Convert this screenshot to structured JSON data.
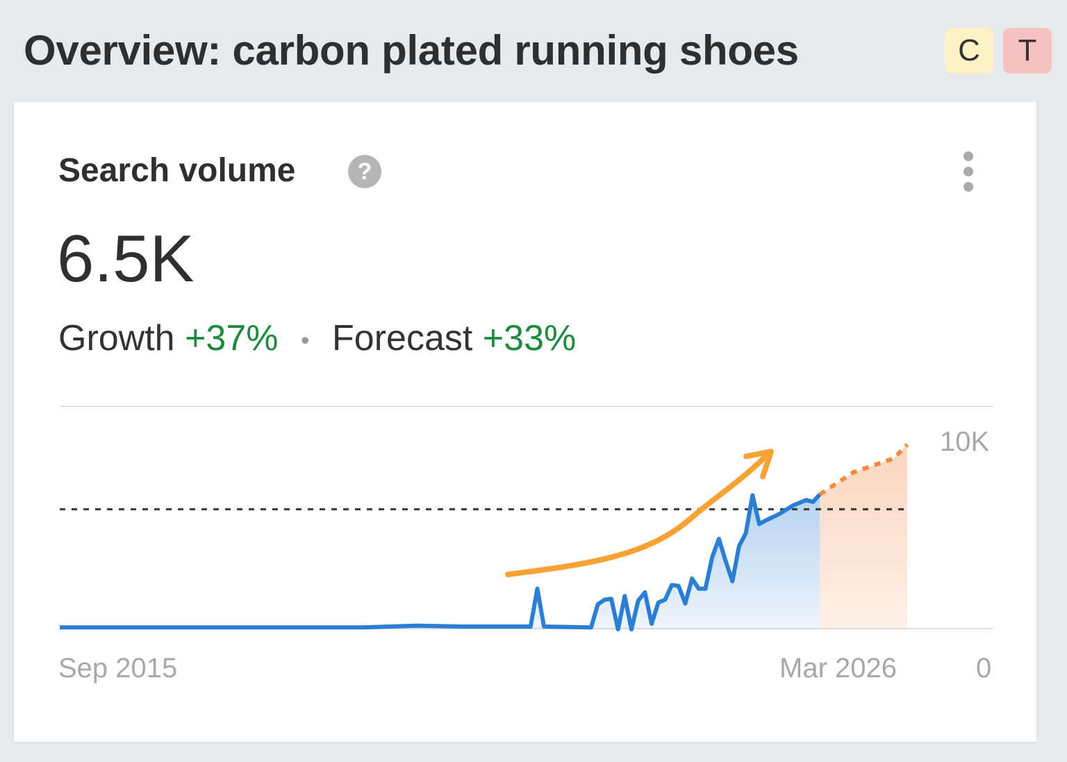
{
  "header": {
    "title": "Overview: carbon plated running shoes",
    "badges": [
      {
        "label": "C",
        "color": "#fdf1c6"
      },
      {
        "label": "T",
        "color": "#f8c1c1"
      }
    ]
  },
  "card": {
    "title": "Search volume",
    "help_icon": "question-circle-icon",
    "menu_icon": "kebab-menu-icon",
    "value": "6.5K",
    "growth_label": "Growth",
    "growth_value": "+37%",
    "separator": "•",
    "forecast_label": "Forecast",
    "forecast_value": "+33%"
  },
  "chart_data": {
    "type": "area",
    "x_start_label": "Sep 2015",
    "x_end_label": "Mar 2026",
    "y_max_label": "10K",
    "y_min_label": "0",
    "ylim": [
      0,
      10000
    ],
    "reference_line": 6500,
    "colors": {
      "history": "#2a7fd4",
      "forecast": "#f08a3c",
      "trend_arrow": "#f7a233",
      "reference": "#333333"
    },
    "series": [
      {
        "kind": "history",
        "points": [
          [
            "2015-09",
            100
          ],
          [
            "2019-06",
            100
          ],
          [
            "2020-02",
            200
          ],
          [
            "2020-09",
            150
          ],
          [
            "2021-07",
            150
          ],
          [
            "2021-08",
            2200
          ],
          [
            "2021-09",
            150
          ],
          [
            "2022-04",
            100
          ],
          [
            "2022-05",
            1350
          ],
          [
            "2022-06",
            1600
          ],
          [
            "2022-07",
            1650
          ],
          [
            "2022-08",
            0
          ],
          [
            "2022-09",
            1800
          ],
          [
            "2022-10",
            0
          ],
          [
            "2022-11",
            1550
          ],
          [
            "2022-12",
            2000
          ],
          [
            "2023-01",
            300
          ],
          [
            "2023-02",
            1450
          ],
          [
            "2023-03",
            1600
          ],
          [
            "2023-04",
            2400
          ],
          [
            "2023-05",
            2350
          ],
          [
            "2023-06",
            1400
          ],
          [
            "2023-07",
            2750
          ],
          [
            "2023-08",
            2200
          ],
          [
            "2023-09",
            2200
          ],
          [
            "2023-10",
            3900
          ],
          [
            "2023-11",
            4900
          ],
          [
            "2023-12",
            3700
          ],
          [
            "2024-01",
            2600
          ],
          [
            "2024-02",
            4500
          ],
          [
            "2024-03",
            5200
          ],
          [
            "2024-04",
            7250
          ],
          [
            "2024-05",
            5700
          ],
          [
            "2024-06",
            5900
          ],
          [
            "2024-08",
            6250
          ],
          [
            "2024-10",
            6700
          ],
          [
            "2024-12",
            7000
          ],
          [
            "2025-01",
            6900
          ],
          [
            "2025-02",
            7300
          ]
        ]
      },
      {
        "kind": "forecast",
        "points": [
          [
            "2025-02",
            7300
          ],
          [
            "2025-07",
            8500
          ],
          [
            "2026-01",
            9250
          ],
          [
            "2026-03",
            10000
          ]
        ]
      }
    ],
    "grid": false,
    "legend": "none"
  }
}
